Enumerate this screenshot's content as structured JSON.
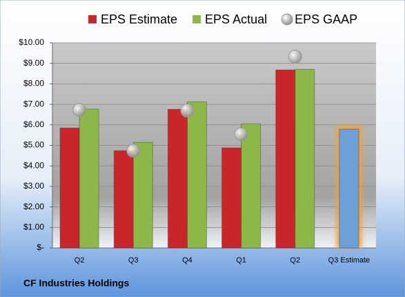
{
  "chart_data": {
    "type": "bar",
    "categories": [
      "Q2",
      "Q3",
      "Q4",
      "Q1",
      "Q2",
      "Q3 Estimate"
    ],
    "series": [
      {
        "name": "EPS Estimate",
        "color": "#c8262a",
        "values": [
          5.85,
          4.74,
          6.76,
          4.88,
          8.68,
          5.79
        ]
      },
      {
        "name": "EPS Actual",
        "color": "#8db849",
        "values": [
          6.77,
          5.15,
          7.12,
          6.05,
          8.71,
          null
        ]
      },
      {
        "name": "EPS GAAP",
        "color": "#b0b0b0",
        "marker": "circle",
        "values": [
          6.73,
          4.74,
          6.7,
          5.55,
          9.33,
          null
        ]
      }
    ],
    "highlight_color": "#6f9fd8",
    "ylim": [
      0,
      10
    ],
    "yticks": [
      {
        "value": 0,
        "label": "$-"
      },
      {
        "value": 1,
        "label": "$1.00"
      },
      {
        "value": 2,
        "label": "$2.00"
      },
      {
        "value": 3,
        "label": "$3.00"
      },
      {
        "value": 4,
        "label": "$4.00"
      },
      {
        "value": 5,
        "label": "$5.00"
      },
      {
        "value": 6,
        "label": "$6.00"
      },
      {
        "value": 7,
        "label": "$7.00"
      },
      {
        "value": 8,
        "label": "$8.00"
      },
      {
        "value": 9,
        "label": "$9.00"
      },
      {
        "value": 10,
        "label": "$10.00"
      }
    ],
    "grid": true,
    "legend": "top",
    "caption": "CF Industries Holdings"
  }
}
